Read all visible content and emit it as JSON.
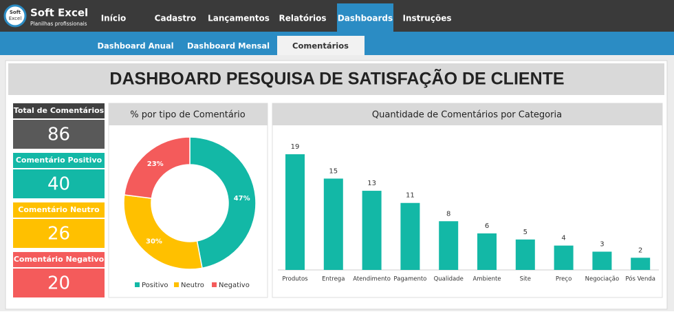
{
  "header": {
    "logo_top": "Soft",
    "logo_bottom": "Excel",
    "brand": "Soft Excel",
    "tagline": "Planilhas profissionais",
    "nav": [
      "Início",
      "Cadastro",
      "Lançamentos",
      "Relatórios",
      "Dashboards",
      "Instruções"
    ],
    "active_nav": 4
  },
  "subnav": {
    "items": [
      "Dashboard Anual",
      "Dashboard Mensal",
      "Comentários"
    ],
    "active": 2
  },
  "title": "DASHBOARD PESQUISA DE SATISFAÇÃO DE CLIENTE",
  "kpis": [
    {
      "label": "Total de Comentários",
      "value": 86
    },
    {
      "label": "Comentário Positivo",
      "value": 40
    },
    {
      "label": "Comentário Neutro",
      "value": 26
    },
    {
      "label": "Comentário Negativo",
      "value": 20
    }
  ],
  "chart_data": [
    {
      "type": "donut",
      "title": "% por tipo de Comentário",
      "categories": [
        "Positivo",
        "Neutro",
        "Negativo"
      ],
      "values": [
        47,
        30,
        23
      ],
      "value_labels": [
        "47%",
        "30%",
        "23%"
      ],
      "colors": [
        "#13b8a6",
        "#ffc000",
        "#f45b5b"
      ],
      "legend": "bottom"
    },
    {
      "type": "bar",
      "title": "Quantidade de Comentários por Categoria",
      "categories": [
        "Produtos",
        "Entrega",
        "Atendimento",
        "Pagamento",
        "Qualidade",
        "Ambiente",
        "Site",
        "Preço",
        "Negociação",
        "Pós Venda"
      ],
      "values": [
        19,
        15,
        13,
        11,
        8,
        6,
        5,
        4,
        3,
        2
      ],
      "color": "#13b8a6"
    }
  ]
}
